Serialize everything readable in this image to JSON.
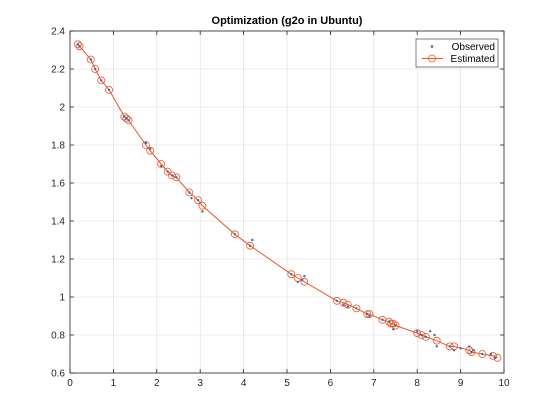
{
  "colors": {
    "observed": "#3b6ea5",
    "estimated": "#e8572a",
    "axis": "#262626",
    "grid": "#dcdcdc"
  },
  "chart_data": {
    "type": "line",
    "title": "Optimization (g2o in Ubuntu)",
    "xlabel": "",
    "ylabel": "",
    "xlim": [
      0,
      10
    ],
    "ylim": [
      0.6,
      2.4
    ],
    "x_ticks": [
      0,
      1,
      2,
      3,
      4,
      5,
      6,
      7,
      8,
      9,
      10
    ],
    "y_ticks": [
      0.6,
      0.8,
      1,
      1.2,
      1.4,
      1.6,
      1.8,
      2,
      2.2,
      2.4
    ],
    "grid": true,
    "legend_position": "top-right",
    "series": [
      {
        "name": "Observed",
        "style": "dots",
        "x": [
          0.18,
          0.22,
          0.48,
          0.58,
          0.72,
          0.9,
          1.25,
          1.3,
          1.35,
          1.75,
          1.85,
          2.1,
          2.25,
          2.35,
          2.45,
          2.75,
          2.8,
          2.95,
          3.05,
          3.8,
          4.15,
          4.2,
          5.1,
          5.25,
          5.4,
          5.35,
          6.15,
          6.3,
          6.4,
          6.6,
          6.85,
          6.9,
          7.2,
          7.35,
          7.45,
          7.5,
          8.0,
          8.1,
          8.2,
          8.3,
          8.45,
          8.4,
          8.75,
          8.85,
          9.0,
          9.2,
          9.25,
          9.3,
          9.5,
          9.7,
          9.8
        ],
        "y": [
          2.33,
          2.32,
          2.25,
          2.2,
          2.14,
          2.09,
          1.95,
          1.94,
          1.93,
          1.81,
          1.78,
          1.69,
          1.66,
          1.64,
          1.63,
          1.55,
          1.52,
          1.51,
          1.45,
          1.33,
          1.27,
          1.3,
          1.12,
          1.08,
          1.11,
          1.09,
          0.98,
          0.96,
          0.95,
          0.94,
          0.91,
          0.9,
          0.88,
          0.87,
          0.83,
          0.85,
          0.82,
          0.8,
          0.79,
          0.82,
          0.74,
          0.8,
          0.74,
          0.72,
          0.73,
          0.74,
          0.71,
          0.72,
          0.7,
          0.7,
          0.68
        ]
      },
      {
        "name": "Estimated",
        "style": "line-circles",
        "x": [
          0.18,
          0.22,
          0.48,
          0.58,
          0.72,
          0.9,
          1.25,
          1.3,
          1.35,
          1.75,
          1.85,
          2.1,
          2.25,
          2.35,
          2.45,
          2.75,
          2.95,
          3.05,
          3.8,
          4.15,
          5.1,
          5.25,
          5.4,
          6.15,
          6.3,
          6.4,
          6.6,
          6.85,
          6.9,
          7.2,
          7.35,
          7.4,
          7.45,
          7.5,
          8.0,
          8.1,
          8.2,
          8.45,
          8.75,
          8.85,
          9.2,
          9.25,
          9.5,
          9.75,
          9.85
        ],
        "y": [
          2.33,
          2.32,
          2.25,
          2.2,
          2.14,
          2.09,
          1.95,
          1.94,
          1.93,
          1.8,
          1.77,
          1.7,
          1.66,
          1.64,
          1.63,
          1.55,
          1.51,
          1.48,
          1.33,
          1.27,
          1.12,
          1.1,
          1.08,
          0.98,
          0.97,
          0.96,
          0.94,
          0.91,
          0.91,
          0.88,
          0.87,
          0.86,
          0.86,
          0.85,
          0.81,
          0.8,
          0.79,
          0.77,
          0.74,
          0.74,
          0.72,
          0.71,
          0.7,
          0.69,
          0.68
        ]
      }
    ]
  }
}
